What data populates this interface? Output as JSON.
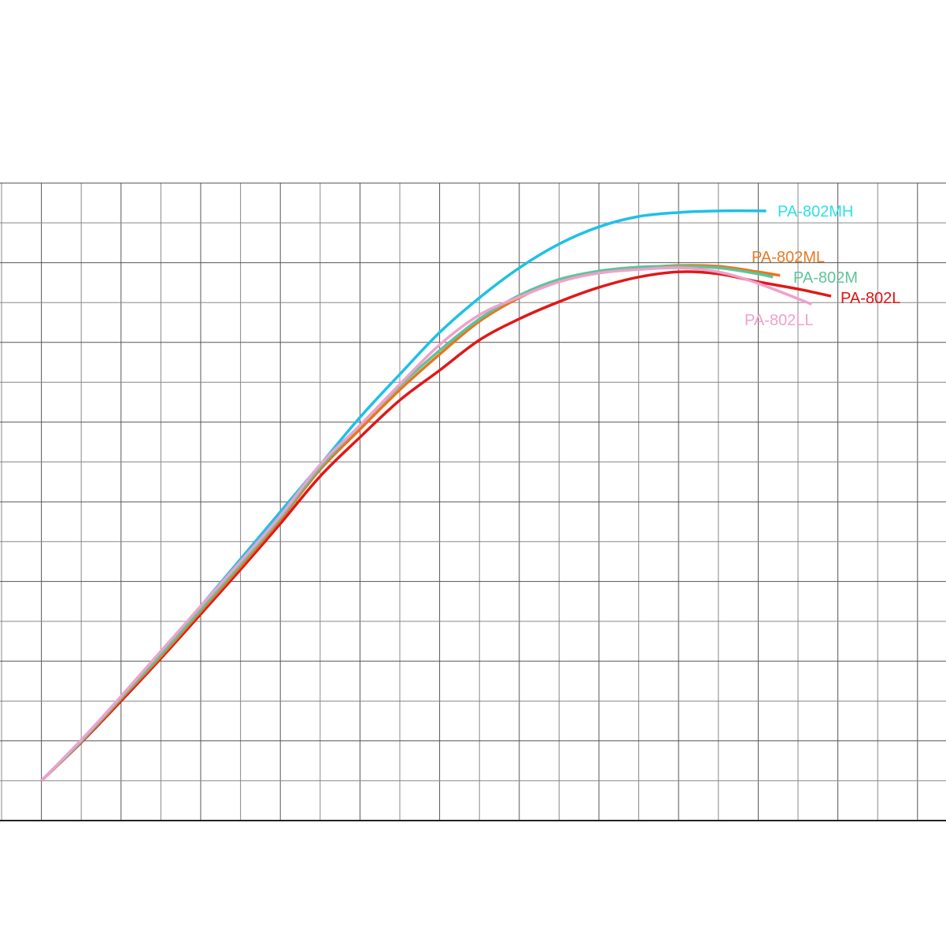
{
  "chart_data": {
    "type": "line",
    "title": "",
    "xlabel": "",
    "ylabel": "",
    "xlim": [
      0,
      23.7
    ],
    "ylim": [
      0,
      16
    ],
    "grid": true,
    "legend": "inline labels at line ends",
    "series": [
      {
        "name": "PA-802MH",
        "color": "#1EC0E8",
        "label_color": "#2EE0E6",
        "x": [
          1,
          2,
          3,
          4,
          5,
          6,
          7,
          8,
          9,
          10,
          11,
          12,
          13,
          14,
          15,
          16,
          17,
          18,
          19.2
        ],
        "y": [
          1.0,
          2.02,
          3.1,
          4.23,
          5.38,
          6.56,
          7.75,
          8.93,
          10.12,
          11.2,
          12.25,
          13.12,
          13.87,
          14.47,
          14.9,
          15.16,
          15.26,
          15.3,
          15.3
        ]
      },
      {
        "name": "PA-802ML",
        "color": "#E8761E",
        "label_color": "#E87A20",
        "x": [
          1,
          2,
          3,
          4,
          5,
          6,
          7,
          8,
          9,
          10,
          11,
          12,
          13,
          14,
          15,
          16,
          17,
          18,
          19,
          19.55
        ],
        "y": [
          1.0,
          1.98,
          3.05,
          4.12,
          5.25,
          6.38,
          7.55,
          8.81,
          9.82,
          10.81,
          11.7,
          12.53,
          13.12,
          13.54,
          13.77,
          13.87,
          13.93,
          13.91,
          13.77,
          13.68
        ]
      },
      {
        "name": "PA-802M",
        "color": "#5CC49A",
        "label_color": "#5CC49A",
        "x": [
          1,
          2,
          3,
          4,
          5,
          6,
          7,
          8,
          9,
          10,
          11,
          12,
          13,
          14,
          15,
          16,
          17,
          18,
          19,
          19.37
        ],
        "y": [
          1.0,
          1.99,
          3.08,
          4.17,
          5.3,
          6.44,
          7.6,
          8.87,
          9.92,
          10.91,
          11.8,
          12.59,
          13.18,
          13.58,
          13.79,
          13.89,
          13.91,
          13.87,
          13.72,
          13.64
        ]
      },
      {
        "name": "PA-802L",
        "color": "#E01818",
        "label_color": "#E01010",
        "x": [
          1,
          2,
          3,
          4,
          5,
          6,
          7,
          8,
          9,
          10,
          11,
          12,
          13,
          14,
          15,
          16,
          17,
          18,
          19,
          20,
          20.83
        ],
        "y": [
          1.0,
          1.96,
          3.0,
          4.07,
          5.18,
          6.3,
          7.45,
          8.64,
          9.62,
          10.55,
          11.3,
          12.06,
          12.59,
          13.02,
          13.38,
          13.64,
          13.77,
          13.72,
          13.52,
          13.34,
          13.16
        ]
      },
      {
        "name": "PA-802LL",
        "color": "#F0A0CC",
        "label_color": "#F0A0CC",
        "x": [
          1,
          2,
          3,
          4,
          5,
          6,
          7,
          8,
          9,
          10,
          11,
          12,
          13,
          14,
          15,
          16,
          17,
          18,
          19,
          20.34
        ],
        "y": [
          1.0,
          2.02,
          3.12,
          4.25,
          5.38,
          6.5,
          7.65,
          8.93,
          9.92,
          10.95,
          11.94,
          12.69,
          13.14,
          13.52,
          13.74,
          13.83,
          13.87,
          13.77,
          13.48,
          12.96
        ]
      }
    ]
  }
}
